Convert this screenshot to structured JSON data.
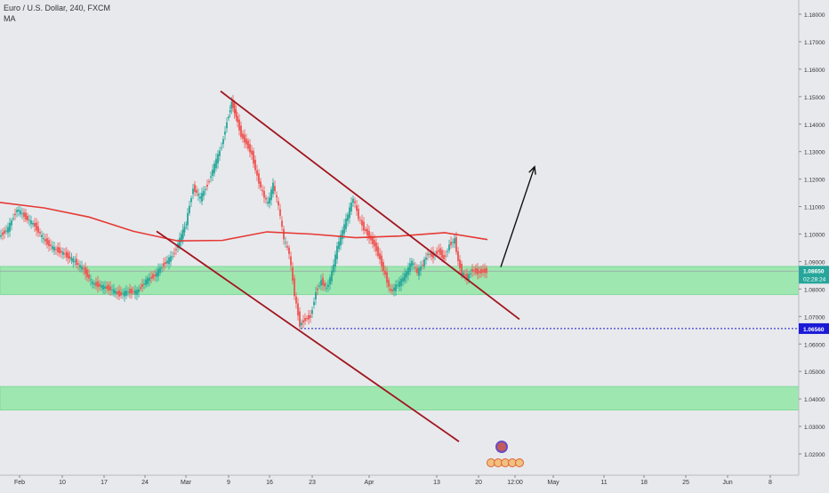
{
  "header": {
    "symbol_line": "Euro / U.S. Dollar, 240, FXCM",
    "indicator": "MA"
  },
  "chart_data": {
    "type": "candlestick",
    "ylim": [
      1.0135,
      1.188
    ],
    "price_ticks": [
      "1.18000",
      "1.17000",
      "1.16000",
      "1.15000",
      "1.14000",
      "1.13000",
      "1.12000",
      "1.11000",
      "1.10000",
      "1.09000",
      "1.08000",
      "1.07000",
      "1.06000",
      "1.05000",
      "1.04000",
      "1.03000",
      "1.02000"
    ],
    "date_ticks": [
      "Feb",
      "10",
      "17",
      "24",
      "Mar",
      "9",
      "16",
      "23",
      "Apr",
      "13",
      "20",
      "12:00",
      "May",
      "11",
      "18",
      "25",
      "Jun",
      "8"
    ],
    "current_price": "1.08650",
    "countdown": "02:28:24",
    "level_price": "1.06560",
    "colors": {
      "up": "#26a69a",
      "down": "#ef5350",
      "ma": "#e53935",
      "channel": "#a0141e",
      "zone": "#92e6a6",
      "level": "#1a1ad6",
      "price_tag": "#26a69a",
      "level_tag": "#1a1ad6"
    },
    "zones": [
      {
        "from": 1.078,
        "to": 1.0882
      },
      {
        "from": 1.036,
        "to": 1.0445
      }
    ],
    "ma": [
      {
        "x": 0,
        "y": 1.1115
      },
      {
        "x": 50,
        "y": 1.1095
      },
      {
        "x": 100,
        "y": 1.1062
      },
      {
        "x": 150,
        "y": 1.101
      },
      {
        "x": 200,
        "y": 1.0975
      },
      {
        "x": 250,
        "y": 1.0977
      },
      {
        "x": 300,
        "y": 1.1008
      },
      {
        "x": 350,
        "y": 1.1
      },
      {
        "x": 400,
        "y": 1.0987
      },
      {
        "x": 450,
        "y": 1.0993
      },
      {
        "x": 500,
        "y": 1.1005
      },
      {
        "x": 548,
        "y": 1.098
      }
    ],
    "candles": [
      {
        "x": 0,
        "y": 1.099
      },
      {
        "x": 10,
        "y": 1.102
      },
      {
        "x": 20,
        "y": 1.109
      },
      {
        "x": 30,
        "y": 1.106
      },
      {
        "x": 40,
        "y": 1.103
      },
      {
        "x": 50,
        "y": 1.098
      },
      {
        "x": 60,
        "y": 1.095
      },
      {
        "x": 72,
        "y": 1.093
      },
      {
        "x": 85,
        "y": 1.09
      },
      {
        "x": 95,
        "y": 1.087
      },
      {
        "x": 105,
        "y": 1.082
      },
      {
        "x": 115,
        "y": 1.081
      },
      {
        "x": 125,
        "y": 1.08
      },
      {
        "x": 135,
        "y": 1.078
      },
      {
        "x": 145,
        "y": 1.079
      },
      {
        "x": 155,
        "y": 1.079
      },
      {
        "x": 165,
        "y": 1.083
      },
      {
        "x": 175,
        "y": 1.085
      },
      {
        "x": 185,
        "y": 1.089
      },
      {
        "x": 195,
        "y": 1.092
      },
      {
        "x": 203,
        "y": 1.098
      },
      {
        "x": 210,
        "y": 1.104
      },
      {
        "x": 218,
        "y": 1.117
      },
      {
        "x": 226,
        "y": 1.113
      },
      {
        "x": 234,
        "y": 1.118
      },
      {
        "x": 242,
        "y": 1.125
      },
      {
        "x": 250,
        "y": 1.132
      },
      {
        "x": 256,
        "y": 1.141
      },
      {
        "x": 261,
        "y": 1.148
      },
      {
        "x": 266,
        "y": 1.143
      },
      {
        "x": 272,
        "y": 1.136
      },
      {
        "x": 278,
        "y": 1.133
      },
      {
        "x": 284,
        "y": 1.129
      },
      {
        "x": 290,
        "y": 1.121
      },
      {
        "x": 296,
        "y": 1.115
      },
      {
        "x": 302,
        "y": 1.111
      },
      {
        "x": 308,
        "y": 1.118
      },
      {
        "x": 314,
        "y": 1.11
      },
      {
        "x": 320,
        "y": 1.098
      },
      {
        "x": 326,
        "y": 1.093
      },
      {
        "x": 332,
        "y": 1.078
      },
      {
        "x": 338,
        "y": 1.067
      },
      {
        "x": 344,
        "y": 1.069
      },
      {
        "x": 350,
        "y": 1.07
      },
      {
        "x": 356,
        "y": 1.079
      },
      {
        "x": 362,
        "y": 1.083
      },
      {
        "x": 368,
        "y": 1.08
      },
      {
        "x": 374,
        "y": 1.086
      },
      {
        "x": 380,
        "y": 1.095
      },
      {
        "x": 386,
        "y": 1.101
      },
      {
        "x": 392,
        "y": 1.107
      },
      {
        "x": 398,
        "y": 1.113
      },
      {
        "x": 404,
        "y": 1.106
      },
      {
        "x": 410,
        "y": 1.102
      },
      {
        "x": 416,
        "y": 1.099
      },
      {
        "x": 422,
        "y": 1.096
      },
      {
        "x": 428,
        "y": 1.091
      },
      {
        "x": 434,
        "y": 1.085
      },
      {
        "x": 440,
        "y": 1.079
      },
      {
        "x": 446,
        "y": 1.081
      },
      {
        "x": 452,
        "y": 1.083
      },
      {
        "x": 458,
        "y": 1.086
      },
      {
        "x": 464,
        "y": 1.09
      },
      {
        "x": 470,
        "y": 1.086
      },
      {
        "x": 476,
        "y": 1.089
      },
      {
        "x": 482,
        "y": 1.093
      },
      {
        "x": 488,
        "y": 1.092
      },
      {
        "x": 494,
        "y": 1.094
      },
      {
        "x": 500,
        "y": 1.091
      },
      {
        "x": 506,
        "y": 1.096
      },
      {
        "x": 512,
        "y": 1.098
      },
      {
        "x": 516,
        "y": 1.09
      },
      {
        "x": 520,
        "y": 1.086
      },
      {
        "x": 526,
        "y": 1.084
      },
      {
        "x": 532,
        "y": 1.087
      },
      {
        "x": 538,
        "y": 1.086
      },
      {
        "x": 544,
        "y": 1.0865
      },
      {
        "x": 548,
        "y": 1.0865
      }
    ],
    "channel_lines": [
      {
        "from": {
          "x": 248,
          "y": 1.152
        },
        "to": {
          "x": 584,
          "y": 1.069
        }
      },
      {
        "from": {
          "x": 176,
          "y": 1.101
        },
        "to": {
          "x": 516,
          "y": 1.0245
        }
      }
    ],
    "arrow": {
      "from": {
        "x": 563,
        "y": 1.088
      },
      "to": {
        "x": 601,
        "y": 1.1245
      }
    }
  }
}
